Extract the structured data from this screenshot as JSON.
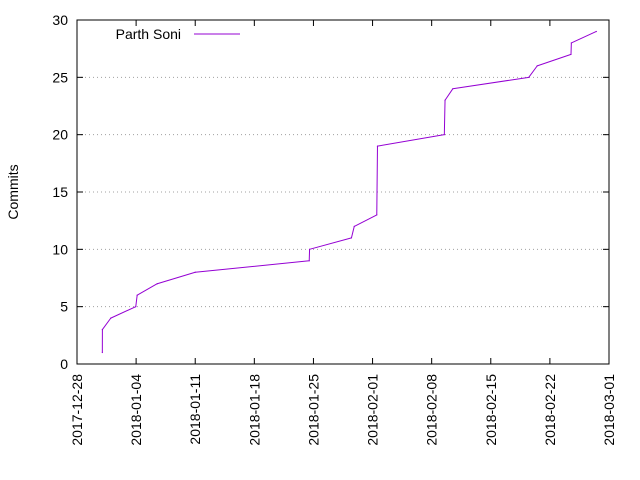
{
  "chart_data": {
    "type": "line",
    "title": "",
    "xlabel": "",
    "ylabel": "Commits",
    "x_type": "date",
    "xlim": [
      "2017-12-28",
      "2018-03-01"
    ],
    "ylim": [
      0,
      30
    ],
    "x_ticks": [
      "2017-12-28",
      "2018-01-04",
      "2018-01-11",
      "2018-01-18",
      "2018-01-25",
      "2018-02-01",
      "2018-02-08",
      "2018-02-15",
      "2018-02-22",
      "2018-03-01"
    ],
    "y_ticks": [
      0,
      5,
      10,
      15,
      20,
      25,
      30
    ],
    "grid": "horizontal dotted",
    "legend_position": "top-left",
    "series": [
      {
        "name": "Parth Soni",
        "color": "#9400d3",
        "points": [
          {
            "x": "2017-12-31T00:00",
            "y": 1
          },
          {
            "x": "2017-12-31T00:10",
            "y": 3
          },
          {
            "x": "2018-01-01T00:00",
            "y": 4
          },
          {
            "x": "2018-01-03T23:00",
            "y": 5
          },
          {
            "x": "2018-01-04T03:00",
            "y": 6
          },
          {
            "x": "2018-01-06T12:00",
            "y": 7
          },
          {
            "x": "2018-01-11T00:00",
            "y": 8
          },
          {
            "x": "2018-01-24T12:00",
            "y": 9
          },
          {
            "x": "2018-01-24T13:00",
            "y": 10
          },
          {
            "x": "2018-01-29T12:00",
            "y": 11
          },
          {
            "x": "2018-01-29T20:00",
            "y": 12
          },
          {
            "x": "2018-02-01T12:00",
            "y": 13
          },
          {
            "x": "2018-02-01T14:00",
            "y": 19
          },
          {
            "x": "2018-02-09T12:00",
            "y": 20
          },
          {
            "x": "2018-02-09T14:00",
            "y": 23
          },
          {
            "x": "2018-02-10T12:00",
            "y": 24
          },
          {
            "x": "2018-02-19T12:00",
            "y": 25
          },
          {
            "x": "2018-02-20T12:00",
            "y": 26
          },
          {
            "x": "2018-02-24T12:00",
            "y": 27
          },
          {
            "x": "2018-02-24T13:00",
            "y": 28
          },
          {
            "x": "2018-02-27T12:00",
            "y": 29
          }
        ]
      }
    ]
  }
}
